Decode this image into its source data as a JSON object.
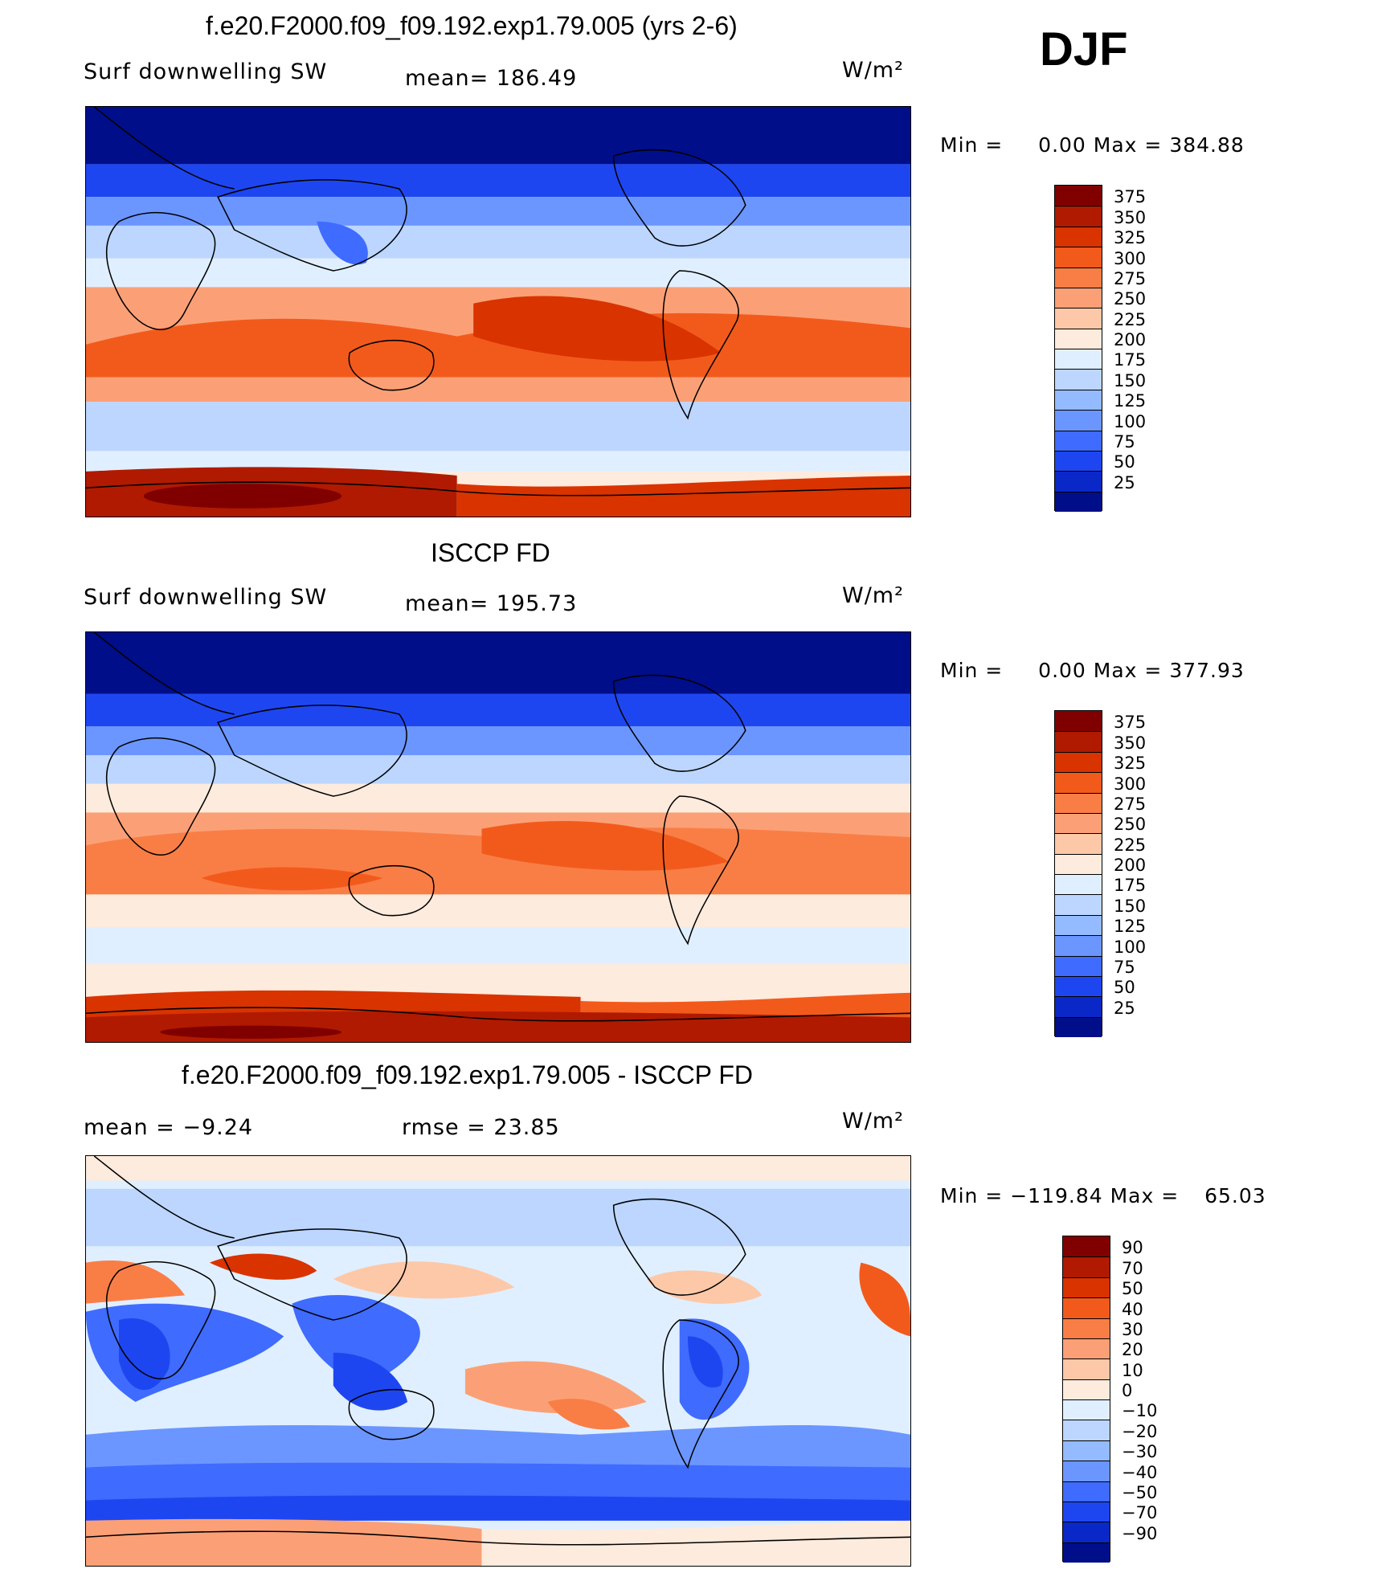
{
  "season": "DJF",
  "panels": [
    {
      "title": "f.e20.F2000.f09_f09.192.exp1.79.005 (yrs 2-6)",
      "left_label": "Surf  downwelling  SW",
      "center_label": "mean=  186.49",
      "units": "W/m²",
      "min_label": "Min  =",
      "min_value": "0.00",
      "max_label": "Max  =",
      "max_value": "384.88",
      "scale": "abs",
      "colorbar": {
        "labels": [
          "375",
          "350",
          "325",
          "300",
          "275",
          "250",
          "225",
          "200",
          "175",
          "150",
          "125",
          "100",
          "75",
          "50",
          "25"
        ],
        "colors": [
          "#800000",
          "#b01a00",
          "#d93300",
          "#f25a1c",
          "#f97e46",
          "#fba076",
          "#fdc8a8",
          "#fdebdd",
          "#e0efff",
          "#bcd6ff",
          "#94baff",
          "#6b96ff",
          "#3f6bff",
          "#1e46f0",
          "#0a28c8",
          "#000e8a"
        ]
      }
    },
    {
      "title": "ISCCP FD",
      "left_label": "Surf  downwelling  SW",
      "center_label": "mean=  195.73",
      "units": "W/m²",
      "min_label": "Min  =",
      "min_value": "0.00",
      "max_label": "Max  =",
      "max_value": "377.93",
      "scale": "abs",
      "colorbar": {
        "labels": [
          "375",
          "350",
          "325",
          "300",
          "275",
          "250",
          "225",
          "200",
          "175",
          "150",
          "125",
          "100",
          "75",
          "50",
          "25"
        ],
        "colors": [
          "#800000",
          "#b01a00",
          "#d93300",
          "#f25a1c",
          "#f97e46",
          "#fba076",
          "#fdc8a8",
          "#fdebdd",
          "#e0efff",
          "#bcd6ff",
          "#94baff",
          "#6b96ff",
          "#3f6bff",
          "#1e46f0",
          "#0a28c8",
          "#000e8a"
        ]
      }
    },
    {
      "title": "f.e20.F2000.f09_f09.192.exp1.79.005 - ISCCP FD",
      "left_label": "mean  =    −9.24",
      "center_label": "rmse  =    23.85",
      "units": "W/m²",
      "min_label": "Min  =",
      "min_value": "−119.84",
      "max_label": "Max  =",
      "max_value": "65.03",
      "scale": "diff",
      "colorbar": {
        "labels": [
          "90",
          "70",
          "50",
          "40",
          "30",
          "20",
          "10",
          "0",
          "−10",
          "−20",
          "−30",
          "−40",
          "−50",
          "−70",
          "−90"
        ],
        "colors": [
          "#800000",
          "#b01a00",
          "#d93300",
          "#f25a1c",
          "#f97e46",
          "#fba076",
          "#fdc8a8",
          "#fdebdd",
          "#e0efff",
          "#bcd6ff",
          "#94baff",
          "#6b96ff",
          "#3f6bff",
          "#1e46f0",
          "#0a28c8",
          "#000e8a"
        ]
      }
    }
  ]
}
